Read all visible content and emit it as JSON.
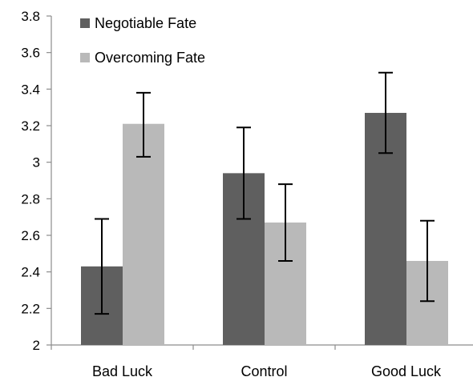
{
  "chart_data": {
    "type": "bar",
    "title": "",
    "xlabel": "",
    "ylabel": "",
    "categories": [
      "Bad Luck",
      "Control",
      "Good Luck"
    ],
    "series": [
      {
        "name": "Negotiable Fate",
        "color": "#5f5f5f",
        "values": [
          2.43,
          2.94,
          3.27
        ],
        "error_low": [
          2.17,
          2.69,
          3.05
        ],
        "error_high": [
          2.69,
          3.19,
          3.49
        ]
      },
      {
        "name": "Overcoming Fate",
        "color": "#b9b9b9",
        "values": [
          3.21,
          2.67,
          2.46
        ],
        "error_low": [
          3.03,
          2.46,
          2.24
        ],
        "error_high": [
          3.38,
          2.88,
          2.68
        ]
      }
    ],
    "ylim": [
      2,
      3.8
    ],
    "yticks": [
      2,
      2.2,
      2.4,
      2.6,
      2.8,
      3,
      3.2,
      3.4,
      3.6,
      3.8
    ],
    "ytick_labels": [
      "2",
      "2.2",
      "2.4",
      "2.6",
      "2.8",
      "3",
      "3.2",
      "3.4",
      "3.6",
      "3.8"
    ],
    "grid": false,
    "legend_position": "top-left"
  }
}
